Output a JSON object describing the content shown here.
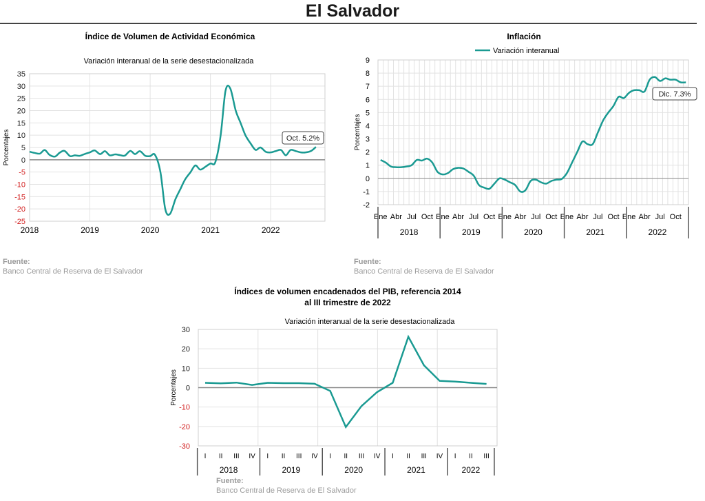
{
  "page": {
    "title": "El Salvador",
    "accent_color": "#1a9a92",
    "negative_tick_color": "#d22020"
  },
  "source_label": "Fuente:",
  "source_text": "Banco Central de Reserva de El Salvador",
  "chart_data": [
    {
      "id": "ivae",
      "type": "line",
      "title": "Índice de Volumen de  Actividad Económica",
      "subtitle": "Variación interanual de la serie desestacionalizada",
      "ylabel": "Porcentajes",
      "xlabel": "",
      "ylim": [
        -25,
        35
      ],
      "yticks": [
        35,
        30,
        25,
        20,
        15,
        10,
        5,
        0,
        -5,
        -10,
        -15,
        -20,
        -25
      ],
      "xlim": [
        2018.0,
        2022.9
      ],
      "xticks": [
        "2018",
        "2019",
        "2020",
        "2021",
        "2022"
      ],
      "grid": true,
      "annotation": "Oct. 5.2%",
      "series": [
        {
          "x": [
            2018.0,
            2018.08,
            2018.17,
            2018.25,
            2018.33,
            2018.42,
            2018.5,
            2018.58,
            2018.67,
            2018.75,
            2018.83,
            2018.92,
            2019.0,
            2019.08,
            2019.17,
            2019.25,
            2019.33,
            2019.42,
            2019.5,
            2019.58,
            2019.67,
            2019.75,
            2019.83,
            2019.92,
            2020.0,
            2020.08,
            2020.17,
            2020.25,
            2020.33,
            2020.42,
            2020.5,
            2020.58,
            2020.67,
            2020.75,
            2020.83,
            2020.92,
            2021.0,
            2021.08,
            2021.17,
            2021.25,
            2021.33,
            2021.42,
            2021.5,
            2021.58,
            2021.67,
            2021.75,
            2021.83,
            2021.92,
            2022.0,
            2022.08,
            2022.17,
            2022.25,
            2022.33,
            2022.42,
            2022.5,
            2022.58,
            2022.67,
            2022.75
          ],
          "values": [
            3.3,
            2.8,
            2.5,
            4.0,
            2.0,
            1.3,
            2.9,
            3.6,
            1.5,
            1.8,
            1.6,
            2.4,
            3.0,
            3.8,
            2.3,
            3.5,
            1.8,
            2.2,
            1.9,
            1.7,
            3.6,
            2.3,
            3.5,
            1.6,
            1.5,
            2.0,
            -5.0,
            -20.0,
            -22.0,
            -16.0,
            -12.0,
            -8.0,
            -5.0,
            -2.3,
            -4.0,
            -2.8,
            -1.5,
            -1.0,
            10.0,
            28.0,
            29.0,
            20.0,
            15.0,
            10.0,
            6.5,
            4.0,
            5.0,
            3.2,
            3.0,
            3.5,
            4.0,
            1.8,
            4.0,
            3.5,
            3.0,
            3.0,
            3.6,
            5.2
          ]
        }
      ]
    },
    {
      "id": "inflacion",
      "type": "line",
      "title": "Inflación",
      "ylabel": "Porcentajes",
      "xlabel": "",
      "ylim": [
        -2,
        9
      ],
      "yticks": [
        9,
        8,
        7,
        6,
        5,
        4,
        3,
        2,
        1,
        0,
        -1,
        -2
      ],
      "xlim": [
        0,
        60
      ],
      "month_labels": [
        "Ene",
        "Abr",
        "Jul",
        "Oct"
      ],
      "year_labels": [
        "2018",
        "2019",
        "2020",
        "2021",
        "2022"
      ],
      "grid": true,
      "legend": "Variación interanual",
      "legend_position": "top",
      "annotation": "Dic. 7.3%",
      "series": [
        {
          "name": "Variación interanual",
          "values": [
            1.4,
            1.2,
            0.9,
            0.85,
            0.85,
            0.9,
            1.0,
            1.4,
            1.35,
            1.5,
            1.2,
            0.5,
            0.3,
            0.4,
            0.7,
            0.8,
            0.75,
            0.5,
            0.2,
            -0.5,
            -0.7,
            -0.8,
            -0.4,
            0.0,
            -0.1,
            -0.3,
            -0.5,
            -1.0,
            -0.9,
            -0.2,
            -0.1,
            -0.3,
            -0.4,
            -0.2,
            -0.1,
            -0.05,
            0.4,
            1.2,
            2.0,
            2.8,
            2.6,
            2.6,
            3.5,
            4.4,
            5.0,
            5.5,
            6.2,
            6.1,
            6.5,
            6.7,
            6.7,
            6.6,
            7.5,
            7.7,
            7.4,
            7.6,
            7.5,
            7.5,
            7.3,
            7.3
          ]
        }
      ]
    },
    {
      "id": "pib",
      "type": "line",
      "title": "Índices de volumen encadenados del PIB, referencia 2014",
      "title_line2": "al III trimestre de 2022",
      "subtitle": "Variación interanual de la serie desestacionalizada",
      "ylabel": "Porcentajes",
      "xlabel": "",
      "ylim": [
        -30,
        30
      ],
      "yticks": [
        30,
        20,
        10,
        0,
        -10,
        -20,
        -30
      ],
      "quarter_labels": [
        "I",
        "II",
        "III",
        "IV",
        "I",
        "II",
        "III",
        "IV",
        "I",
        "II",
        "III",
        "IV",
        "I",
        "II",
        "III",
        "IV",
        "I",
        "II",
        "III"
      ],
      "year_labels": [
        "2018",
        "2019",
        "2020",
        "2021",
        "2022"
      ],
      "grid": true,
      "series": [
        {
          "values": [
            2.5,
            2.2,
            2.6,
            1.4,
            2.5,
            2.3,
            2.3,
            2.0,
            -1.7,
            -20.3,
            -9.5,
            -2.3,
            2.5,
            26.2,
            11.5,
            3.5,
            3.1,
            2.5,
            1.9
          ]
        }
      ]
    }
  ]
}
